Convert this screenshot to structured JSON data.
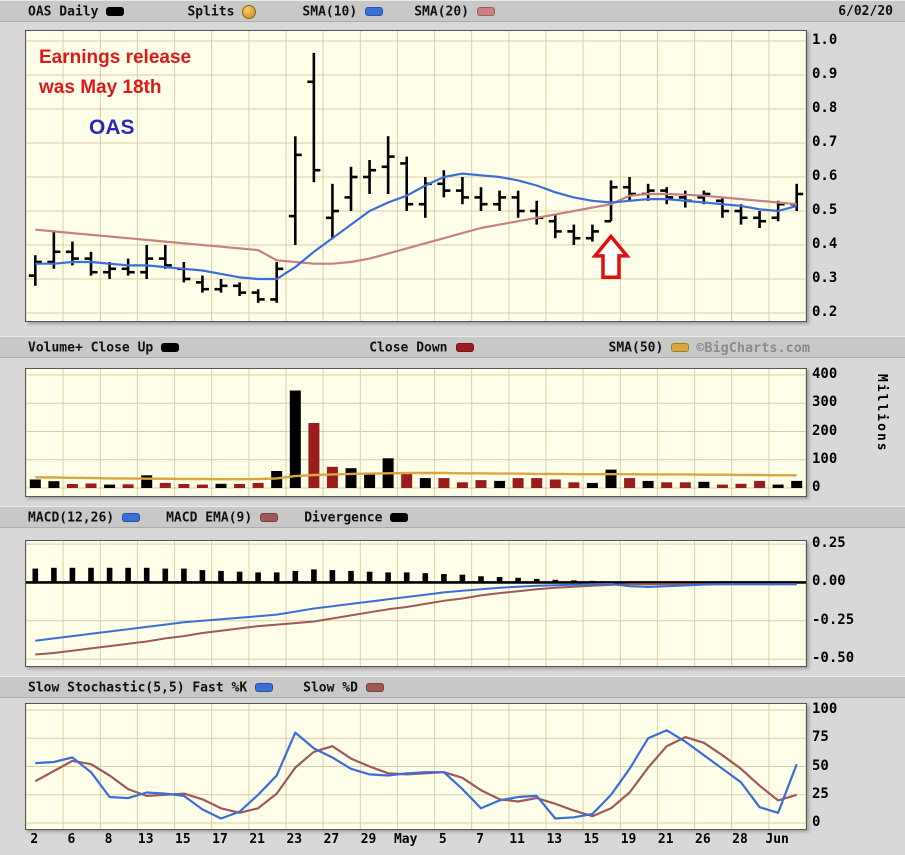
{
  "page": {
    "date": "6/02/20",
    "watermark": "©BigCharts.com",
    "y_axis_unit": "Millions"
  },
  "colors": {
    "page_bg": "#d8d8d8",
    "legend_bg": "#c8c8c8",
    "plot_bg": "#ffffea",
    "grid": "#d8d0a4",
    "price_bar": "#000000",
    "sma10": "#3a6fd8",
    "sma20": "#c88080",
    "vol_up": "#000000",
    "vol_down": "#9b1c1c",
    "sma50": "#d8a840",
    "macd_line": "#3a6fd8",
    "macd_signal": "#a05858",
    "divergence": "#000000",
    "stoch_k": "#3a6fd8",
    "stoch_d": "#a05858",
    "annotation_red": "#e01818",
    "annotation_blue": "#2929c0",
    "arrow": "#e01010"
  },
  "legends": [
    {
      "id": "price",
      "items": [
        {
          "label": "OAS Daily",
          "swatch": "#000000"
        },
        {
          "label": "Splits",
          "swatch": "badge"
        },
        {
          "label": "SMA(10)",
          "swatch": "#3a6fd8"
        },
        {
          "label": "SMA(20)",
          "swatch": "#c88080"
        }
      ]
    },
    {
      "id": "volume",
      "items": [
        {
          "label": "Volume+ Close Up",
          "swatch": "#000000"
        },
        {
          "label": "Close Down",
          "swatch": "#9b1c1c"
        },
        {
          "label": "SMA(50)",
          "swatch": "#d8a840"
        }
      ]
    },
    {
      "id": "macd",
      "items": [
        {
          "label": "MACD(12,26)",
          "swatch": "#3a6fd8"
        },
        {
          "label": "MACD EMA(9)",
          "swatch": "#a05858"
        },
        {
          "label": "Divergence",
          "swatch": "#000000"
        }
      ]
    },
    {
      "id": "stoch",
      "items": [
        {
          "label": "Slow Stochastic(5,5) Fast %K",
          "swatch": "#3a6fd8"
        },
        {
          "label": "Slow %D",
          "swatch": "#a05858"
        }
      ]
    }
  ],
  "chart_data": [
    {
      "panel": "price",
      "type": "ohlc",
      "title": "OAS Daily",
      "symbol": "OAS",
      "legend_position": "top",
      "grid": true,
      "ylim": [
        0.2,
        1.0
      ],
      "yticks": [
        {
          "v": 1.0,
          "label": "1.0"
        },
        {
          "v": 0.9,
          "label": "0.9"
        },
        {
          "v": 0.8,
          "label": "0.8"
        },
        {
          "v": 0.7,
          "label": "0.7"
        },
        {
          "v": 0.6,
          "label": "0.6"
        },
        {
          "v": 0.5,
          "label": "0.5"
        },
        {
          "v": 0.4,
          "label": "0.4"
        },
        {
          "v": 0.3,
          "label": "0.3"
        },
        {
          "v": 0.2,
          "label": "0.2"
        }
      ],
      "open": [
        0.31,
        0.35,
        0.38,
        0.36,
        0.32,
        0.33,
        0.32,
        0.36,
        0.33,
        0.29,
        0.27,
        0.28,
        0.26,
        0.24,
        0.485,
        0.88,
        0.48,
        0.54,
        0.6,
        0.63,
        0.64,
        0.52,
        0.58,
        0.56,
        0.54,
        0.52,
        0.54,
        0.5,
        0.47,
        0.44,
        0.42,
        0.47,
        0.57,
        0.55,
        0.56,
        0.54,
        0.54,
        0.53,
        0.5,
        0.48,
        0.48,
        0.52
      ],
      "high": [
        0.37,
        0.44,
        0.41,
        0.38,
        0.35,
        0.36,
        0.4,
        0.4,
        0.35,
        0.31,
        0.3,
        0.29,
        0.27,
        0.35,
        0.72,
        0.965,
        0.58,
        0.63,
        0.65,
        0.72,
        0.66,
        0.6,
        0.62,
        0.6,
        0.57,
        0.56,
        0.56,
        0.53,
        0.49,
        0.46,
        0.46,
        0.59,
        0.6,
        0.58,
        0.57,
        0.56,
        0.56,
        0.54,
        0.52,
        0.5,
        0.53,
        0.58
      ],
      "low": [
        0.28,
        0.33,
        0.34,
        0.31,
        0.3,
        0.31,
        0.3,
        0.33,
        0.29,
        0.26,
        0.26,
        0.25,
        0.23,
        0.23,
        0.4,
        0.585,
        0.42,
        0.5,
        0.55,
        0.55,
        0.5,
        0.48,
        0.54,
        0.52,
        0.5,
        0.5,
        0.48,
        0.46,
        0.42,
        0.4,
        0.41,
        0.47,
        0.53,
        0.53,
        0.52,
        0.51,
        0.52,
        0.48,
        0.46,
        0.45,
        0.47,
        0.5
      ],
      "close": [
        0.35,
        0.38,
        0.36,
        0.32,
        0.33,
        0.32,
        0.36,
        0.34,
        0.3,
        0.27,
        0.28,
        0.26,
        0.24,
        0.33,
        0.665,
        0.62,
        0.5,
        0.6,
        0.62,
        0.66,
        0.52,
        0.58,
        0.56,
        0.54,
        0.52,
        0.54,
        0.5,
        0.48,
        0.44,
        0.42,
        0.44,
        0.57,
        0.55,
        0.56,
        0.54,
        0.53,
        0.55,
        0.5,
        0.48,
        0.47,
        0.52,
        0.55
      ],
      "sma10": [
        0.345,
        0.345,
        0.35,
        0.35,
        0.345,
        0.34,
        0.34,
        0.335,
        0.33,
        0.325,
        0.315,
        0.305,
        0.3,
        0.3,
        0.335,
        0.38,
        0.42,
        0.46,
        0.5,
        0.525,
        0.545,
        0.575,
        0.6,
        0.61,
        0.605,
        0.6,
        0.59,
        0.575,
        0.555,
        0.54,
        0.53,
        0.525,
        0.53,
        0.535,
        0.535,
        0.53,
        0.525,
        0.52,
        0.515,
        0.505,
        0.5,
        0.515
      ],
      "sma20": [
        0.445,
        0.44,
        0.435,
        0.43,
        0.425,
        0.42,
        0.415,
        0.41,
        0.405,
        0.4,
        0.395,
        0.39,
        0.385,
        0.355,
        0.35,
        0.345,
        0.345,
        0.35,
        0.36,
        0.375,
        0.39,
        0.405,
        0.42,
        0.435,
        0.45,
        0.46,
        0.47,
        0.48,
        0.49,
        0.5,
        0.51,
        0.52,
        0.545,
        0.55,
        0.55,
        0.548,
        0.545,
        0.54,
        0.535,
        0.53,
        0.525,
        0.52
      ],
      "annotations": {
        "line1": "Earnings release",
        "line2": "was May 18th",
        "symbol_label": "OAS",
        "arrow_bar_index": 31
      }
    },
    {
      "panel": "volume",
      "type": "bar",
      "title": "Volume+",
      "ylabel": "Millions",
      "ylim": [
        0,
        400
      ],
      "yticks": [
        {
          "v": 400,
          "label": "400"
        },
        {
          "v": 300,
          "label": "300"
        },
        {
          "v": 200,
          "label": "200"
        },
        {
          "v": 100,
          "label": "100"
        },
        {
          "v": 0,
          "label": "0"
        }
      ],
      "values": [
        30,
        24,
        14,
        16,
        12,
        13,
        45,
        18,
        14,
        12,
        15,
        14,
        18,
        60,
        345,
        230,
        75,
        70,
        55,
        105,
        50,
        35,
        35,
        20,
        28,
        25,
        35,
        35,
        30,
        20,
        18,
        65,
        35,
        25,
        20,
        20,
        22,
        12,
        15,
        25,
        12,
        25
      ],
      "direction": [
        "up",
        "up",
        "down",
        "down",
        "up",
        "down",
        "up",
        "down",
        "down",
        "down",
        "up",
        "down",
        "down",
        "up",
        "up",
        "down",
        "down",
        "up",
        "up",
        "up",
        "down",
        "up",
        "down",
        "down",
        "down",
        "up",
        "down",
        "down",
        "down",
        "down",
        "up",
        "up",
        "down",
        "up",
        "down",
        "down",
        "up",
        "down",
        "down",
        "down",
        "up",
        "up"
      ],
      "sma50": [
        38,
        37,
        36,
        35,
        34,
        34,
        33,
        33,
        32,
        32,
        31,
        31,
        32,
        34,
        42,
        46,
        48,
        50,
        51,
        52,
        53,
        53,
        53,
        52,
        52,
        51,
        51,
        50,
        50,
        49,
        49,
        49,
        49,
        48,
        48,
        48,
        47,
        47,
        46,
        46,
        45,
        45
      ]
    },
    {
      "panel": "macd",
      "type": "line",
      "title": "MACD(12,26)",
      "ylim": [
        -0.545,
        0.27
      ],
      "yticks": [
        {
          "v": 0.25,
          "label": "0.25"
        },
        {
          "v": 0.0,
          "label": "0.00"
        },
        {
          "v": -0.25,
          "label": "-0.25"
        },
        {
          "v": -0.5,
          "label": "-0.50"
        }
      ],
      "macd": [
        -0.38,
        -0.365,
        -0.35,
        -0.335,
        -0.32,
        -0.305,
        -0.29,
        -0.275,
        -0.26,
        -0.25,
        -0.24,
        -0.23,
        -0.22,
        -0.21,
        -0.19,
        -0.17,
        -0.155,
        -0.14,
        -0.125,
        -0.11,
        -0.095,
        -0.08,
        -0.065,
        -0.055,
        -0.045,
        -0.035,
        -0.028,
        -0.022,
        -0.018,
        -0.015,
        -0.012,
        -0.01,
        -0.025,
        -0.03,
        -0.025,
        -0.02,
        -0.014,
        -0.012,
        -0.012,
        -0.012,
        -0.012,
        -0.012
      ],
      "signal": [
        -0.47,
        -0.46,
        -0.445,
        -0.43,
        -0.415,
        -0.4,
        -0.385,
        -0.365,
        -0.35,
        -0.33,
        -0.315,
        -0.3,
        -0.285,
        -0.275,
        -0.265,
        -0.255,
        -0.235,
        -0.215,
        -0.195,
        -0.175,
        -0.16,
        -0.14,
        -0.12,
        -0.105,
        -0.085,
        -0.07,
        -0.058,
        -0.045,
        -0.035,
        -0.028,
        -0.022,
        -0.016,
        -0.012,
        -0.012,
        -0.012,
        -0.012,
        -0.012,
        -0.012,
        -0.012,
        -0.012,
        -0.012,
        -0.012
      ],
      "histogram": [
        0.09,
        0.095,
        0.095,
        0.095,
        0.095,
        0.095,
        0.095,
        0.09,
        0.09,
        0.08,
        0.075,
        0.07,
        0.065,
        0.065,
        0.075,
        0.085,
        0.08,
        0.075,
        0.07,
        0.065,
        0.065,
        0.06,
        0.055,
        0.05,
        0.04,
        0.035,
        0.03,
        0.023,
        0.017,
        0.013,
        0.01,
        0.006,
        -0.013,
        -0.018,
        -0.013,
        -0.008,
        -0.002,
        0,
        0,
        0,
        0,
        0
      ]
    },
    {
      "panel": "stochastic",
      "type": "line",
      "title": "Slow Stochastic(5,5)",
      "ylim": [
        0,
        100
      ],
      "yticks": [
        {
          "v": 100,
          "label": "100"
        },
        {
          "v": 75,
          "label": "75"
        },
        {
          "v": 50,
          "label": "50"
        },
        {
          "v": 25,
          "label": "25"
        },
        {
          "v": 0,
          "label": "0"
        }
      ],
      "k": [
        53,
        54,
        58,
        45,
        23,
        22,
        27,
        26,
        24,
        12,
        4,
        10,
        25,
        42,
        80,
        66,
        58,
        48,
        43,
        42,
        44,
        45,
        45,
        30,
        13,
        20,
        23,
        24,
        4,
        5,
        8,
        25,
        48,
        75,
        82,
        72,
        60,
        48,
        36,
        14,
        9,
        52
      ],
      "d": [
        37,
        46,
        55,
        52,
        42,
        30,
        24,
        25,
        26,
        21,
        13,
        9,
        13,
        26,
        49,
        63,
        68,
        57,
        50,
        44,
        43,
        44,
        45,
        40,
        29,
        21,
        19,
        22,
        17,
        11,
        6,
        13,
        27,
        49,
        68,
        76,
        71,
        60,
        48,
        33,
        20,
        25
      ],
      "x_ticks": [
        {
          "pos": 0,
          "label": "2"
        },
        {
          "pos": 2,
          "label": "6"
        },
        {
          "pos": 4,
          "label": "8"
        },
        {
          "pos": 6,
          "label": "13"
        },
        {
          "pos": 8,
          "label": "15"
        },
        {
          "pos": 10,
          "label": "17"
        },
        {
          "pos": 12,
          "label": "21"
        },
        {
          "pos": 14,
          "label": "23"
        },
        {
          "pos": 16,
          "label": "27"
        },
        {
          "pos": 18,
          "label": "29"
        },
        {
          "pos": 20,
          "label": "May"
        },
        {
          "pos": 22,
          "label": "5"
        },
        {
          "pos": 24,
          "label": "7"
        },
        {
          "pos": 26,
          "label": "11"
        },
        {
          "pos": 28,
          "label": "13"
        },
        {
          "pos": 30,
          "label": "15"
        },
        {
          "pos": 32,
          "label": "19"
        },
        {
          "pos": 34,
          "label": "21"
        },
        {
          "pos": 36,
          "label": "26"
        },
        {
          "pos": 38,
          "label": "28"
        },
        {
          "pos": 40,
          "label": "Jun"
        }
      ]
    }
  ]
}
